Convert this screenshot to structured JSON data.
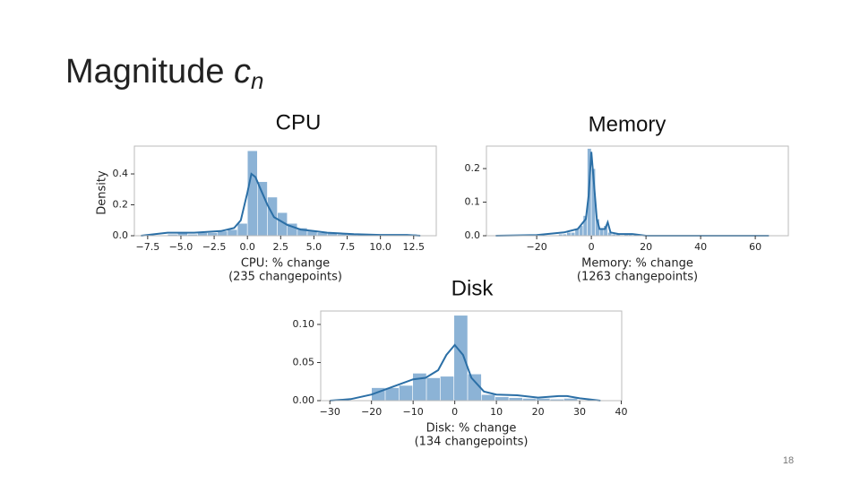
{
  "slide": {
    "title": "Magnitude",
    "title_var": "c",
    "title_sub": "n",
    "page_number": "18"
  },
  "chart_data": [
    {
      "type": "histogram",
      "title": "CPU",
      "xlabel": "CPU: % change",
      "note": "(235 changepoints)",
      "ylabel": "Density",
      "bins": [
        -6,
        -5.25,
        -4.5,
        -3.75,
        -3,
        -2.25,
        -1.5,
        -0.75,
        0,
        0.75,
        1.5,
        2.25,
        3,
        3.75,
        4.5,
        5.25,
        6,
        6.75,
        7.5,
        8.25,
        9,
        9.75,
        10.5,
        11.25,
        12,
        12.75
      ],
      "values": [
        0.01,
        0.02,
        0.01,
        0.02,
        0.02,
        0.03,
        0.04,
        0.08,
        0.55,
        0.35,
        0.25,
        0.15,
        0.08,
        0.05,
        0.03,
        0.02,
        0.02,
        0.01,
        0.01,
        0.01,
        0,
        0.01,
        0,
        0,
        0.01
      ],
      "line": {
        "x": [
          -8,
          -6,
          -4,
          -2,
          -1,
          -0.5,
          0,
          0.3,
          0.6,
          1,
          1.5,
          2,
          3,
          4,
          5,
          6,
          8,
          10,
          12,
          13
        ],
        "y": [
          0,
          0.02,
          0.02,
          0.03,
          0.05,
          0.1,
          0.28,
          0.4,
          0.38,
          0.3,
          0.2,
          0.12,
          0.07,
          0.04,
          0.03,
          0.02,
          0.01,
          0.005,
          0.005,
          0
        ]
      },
      "color": "#7fabd2",
      "line_color": "#2b6fa6",
      "xlim": [
        -8.5,
        14.2
      ],
      "ylim": [
        0,
        0.58
      ],
      "xticks": [
        {
          "value": -7.5,
          "label": "−7.5"
        },
        {
          "value": -5,
          "label": "−5.0"
        },
        {
          "value": -2.5,
          "label": "−2.5"
        },
        {
          "value": 0,
          "label": "0.0"
        },
        2.5,
        {
          "value": 5,
          "label": "5.0"
        },
        7.5,
        {
          "value": 10,
          "label": "10.0"
        },
        12.5
      ],
      "yticks": [
        {
          "value": 0,
          "label": "0.0"
        },
        0.2,
        0.4
      ]
    },
    {
      "type": "histogram",
      "title": "Memory",
      "xlabel": "Memory: % change",
      "note": "(1263 changepoints)",
      "bins": [
        -12,
        -10.5,
        -9,
        -7.5,
        -6,
        -4.5,
        -3,
        -1.5,
        0,
        1.5,
        3,
        4.5,
        6,
        7.5,
        9,
        10.5,
        12,
        13.5,
        15
      ],
      "values": [
        0.005,
        0.005,
        0.01,
        0.01,
        0.02,
        0.03,
        0.06,
        0.26,
        0.2,
        0.05,
        0.02,
        0.03,
        0.01,
        0.005,
        0.005,
        0,
        0.005,
        0.005
      ],
      "line": {
        "x": [
          -35,
          -20,
          -10,
          -5,
          -2,
          -1,
          0,
          1,
          2,
          3,
          5,
          6,
          7,
          10,
          15,
          20,
          40,
          65
        ],
        "y": [
          0,
          0.002,
          0.01,
          0.02,
          0.05,
          0.12,
          0.25,
          0.15,
          0.05,
          0.02,
          0.02,
          0.04,
          0.01,
          0.005,
          0.005,
          0,
          0,
          0
        ]
      },
      "color": "#7fabd2",
      "line_color": "#2b6fa6",
      "xlim": [
        -38.4,
        72.1
      ],
      "ylim": [
        0,
        0.267
      ],
      "xticks": [
        {
          "value": -20,
          "label": "−20"
        },
        0,
        20,
        40,
        60
      ],
      "yticks": [
        {
          "value": 0,
          "label": "0.0"
        },
        0.1,
        0.2
      ]
    },
    {
      "type": "histogram",
      "title": "Disk",
      "xlabel": "Disk: % change",
      "note": "(134 changepoints)",
      "bins": [
        -20,
        -16.7,
        -13.4,
        -10.1,
        -6.8,
        -3.5,
        -0.2,
        3.1,
        6.4,
        9.7,
        13,
        16.3,
        19.6,
        22.9,
        26.2,
        29.5
      ],
      "values": [
        0.017,
        0.017,
        0.02,
        0.036,
        0.03,
        0.032,
        0.112,
        0.035,
        0.008,
        0.005,
        0.004,
        0.003,
        0.003,
        0.002,
        0.003
      ],
      "line": {
        "x": [
          -30,
          -25,
          -20,
          -15,
          -10,
          -7,
          -4,
          -2,
          0,
          2,
          4,
          7,
          10,
          15,
          20,
          25,
          27,
          30,
          35
        ],
        "y": [
          0,
          0.002,
          0.008,
          0.018,
          0.028,
          0.03,
          0.04,
          0.06,
          0.073,
          0.06,
          0.03,
          0.012,
          0.008,
          0.007,
          0.004,
          0.006,
          0.006,
          0.003,
          0
        ]
      },
      "color": "#7fabd2",
      "line_color": "#2b6fa6",
      "xlim": [
        -32.2,
        40.1
      ],
      "ylim": [
        0,
        0.1176
      ],
      "xticks": [
        {
          "value": -30,
          "label": "−30"
        },
        {
          "value": -20,
          "label": "−20"
        },
        {
          "value": -10,
          "label": "−10"
        },
        0,
        10,
        20,
        30,
        40
      ],
      "yticks": [
        {
          "value": 0,
          "label": "0.00"
        },
        0.05,
        {
          "value": 0.1,
          "label": "0.10"
        }
      ]
    }
  ]
}
